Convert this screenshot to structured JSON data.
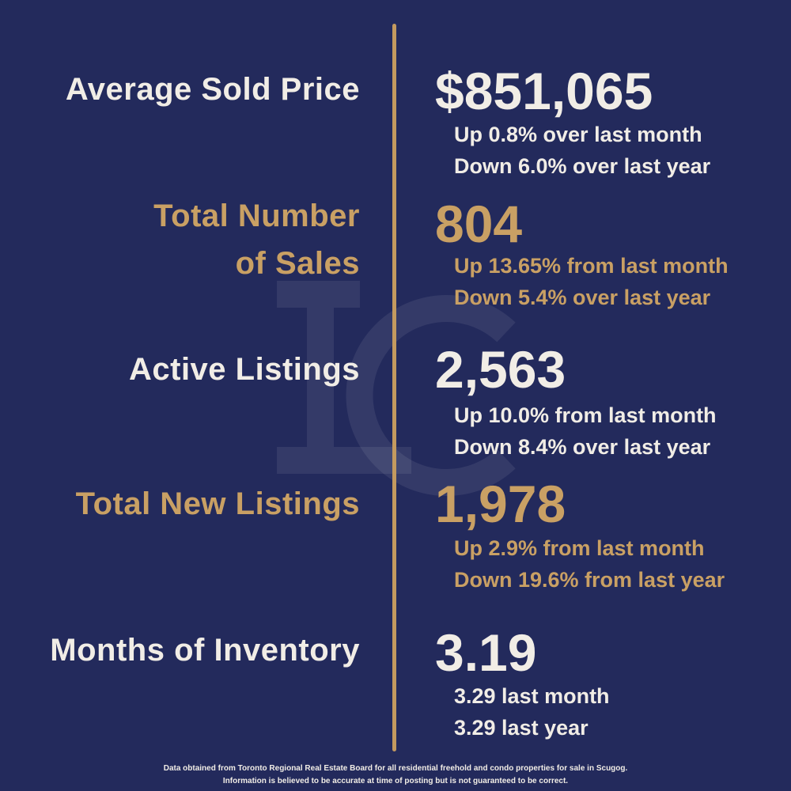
{
  "rows": [
    {
      "label": "Average Sold Price",
      "value": "$851,065",
      "notes": [
        "Up 0.8% over last month",
        "Down 6.0% over last year"
      ]
    },
    {
      "label": "Total Number of Sales",
      "value": "804",
      "notes": [
        "Up 13.65% from last month",
        "Down 5.4% over last year"
      ]
    },
    {
      "label": "Active Listings",
      "value": "2,563",
      "notes": [
        "Up 10.0% from last month",
        "Down 8.4% over last year"
      ]
    },
    {
      "label": "Total New Listings",
      "value": "1,978",
      "notes": [
        "Up 2.9% from last month",
        "Down 19.6% from last year"
      ]
    },
    {
      "label": "Months of Inventory",
      "value": "3.19",
      "notes": [
        "3.29 last month",
        "3.29 last year"
      ]
    }
  ],
  "footer": [
    "Data obtained from Toronto Regional Real Estate Board for all residential freehold and condo properties for sale in Scugog.",
    "Information is believed to be accurate at time of posting but is not guaranteed to be correct."
  ]
}
